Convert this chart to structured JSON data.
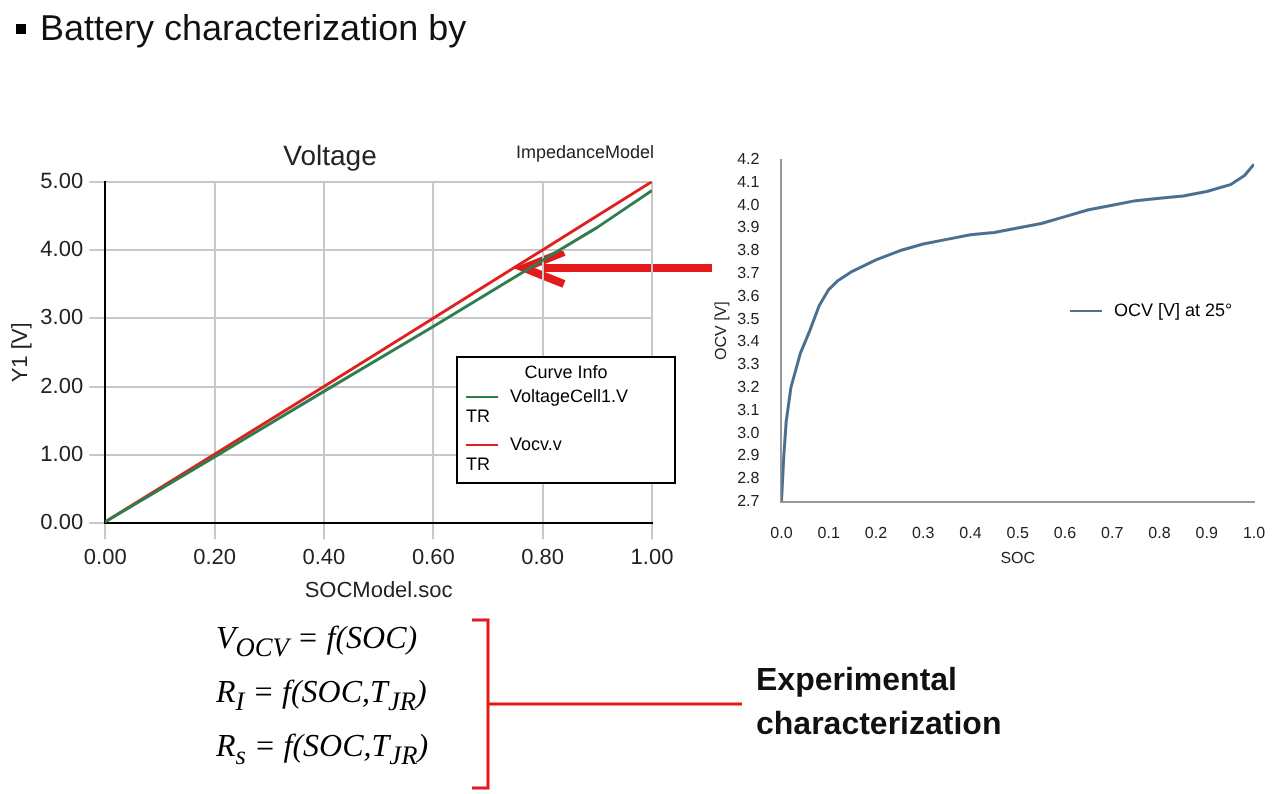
{
  "chart_data": [
    {
      "type": "line",
      "title": "Voltage",
      "xlabel": "SOCModel.soc",
      "ylabel": "Y1 [V]",
      "legend_title": "Curve Info",
      "annotations": [
        "Battery characterization by",
        "ImpedanceModel",
        "TR",
        "TR",
        "V$_{OCV}$ = f(SOC)",
        "R$_{I}$ = f(SOC,T$_{JR}$)",
        "R$_{s}$ = f(SOC,T$_{JR}$)",
        "Experimental characterization"
      ],
      "x": [
        0,
        0.2,
        0.4,
        0.6,
        0.8,
        0.9,
        1.0
      ],
      "series": [
        {
          "name": "VoltageCell1.V",
          "color": "#2e7d4f",
          "values": [
            0.02,
            0.97,
            1.93,
            2.88,
            3.85,
            4.33,
            4.87
          ]
        },
        {
          "name": "Vocv.v",
          "color": "#e0201e",
          "values": [
            0.02,
            1.01,
            2.0,
            3.0,
            4.0,
            4.5,
            5.0
          ]
        }
      ],
      "xlim": [
        0,
        1
      ],
      "ylim": [
        0,
        5
      ],
      "xticks": [
        {
          "value": 0,
          "label": "0.00"
        },
        {
          "value": 0.2,
          "label": "0.20"
        },
        {
          "value": 0.4,
          "label": "0.40"
        },
        {
          "value": 0.6,
          "label": "0.60"
        },
        {
          "value": 0.8,
          "label": "0.80"
        },
        {
          "value": 1,
          "label": "1.00"
        }
      ],
      "yticks": [
        {
          "value": 0,
          "label": "0.00"
        },
        {
          "value": 1,
          "label": "1.00"
        },
        {
          "value": 2,
          "label": "2.00"
        },
        {
          "value": 3,
          "label": "3.00"
        },
        {
          "value": 4,
          "label": "4.00"
        },
        {
          "value": 5,
          "label": "5.00"
        }
      ],
      "grid": true,
      "legend": "bottom right",
      "marker": "none"
    },
    {
      "type": "line",
      "xlabel": "SOC",
      "ylabel": "OCV [V]",
      "x": [
        0,
        0.005,
        0.01,
        0.02,
        0.04,
        0.06,
        0.08,
        0.1,
        0.12,
        0.15,
        0.2,
        0.25,
        0.3,
        0.35,
        0.4,
        0.45,
        0.5,
        0.55,
        0.6,
        0.65,
        0.7,
        0.75,
        0.8,
        0.85,
        0.9,
        0.95,
        0.98,
        1.0
      ],
      "series": [
        {
          "name": "OCV [V] at 25°",
          "color": "#4a6f8f",
          "values": [
            2.7,
            2.9,
            3.05,
            3.2,
            3.35,
            3.45,
            3.56,
            3.63,
            3.67,
            3.71,
            3.76,
            3.8,
            3.83,
            3.85,
            3.87,
            3.88,
            3.9,
            3.92,
            3.95,
            3.98,
            4.0,
            4.02,
            4.03,
            4.04,
            4.06,
            4.09,
            4.13,
            4.18
          ]
        }
      ],
      "xlim": [
        0,
        1
      ],
      "ylim": [
        2.7,
        4.2
      ],
      "xticks": [
        {
          "value": 0,
          "label": "0.0"
        },
        {
          "value": 0.1,
          "label": "0.1"
        },
        {
          "value": 0.2,
          "label": "0.2"
        },
        {
          "value": 0.3,
          "label": "0.3"
        },
        {
          "value": 0.4,
          "label": "0.4"
        },
        {
          "value": 0.5,
          "label": "0.5"
        },
        {
          "value": 0.6,
          "label": "0.6"
        },
        {
          "value": 0.7,
          "label": "0.7"
        },
        {
          "value": 0.8,
          "label": "0.8"
        },
        {
          "value": 0.9,
          "label": "0.9"
        },
        {
          "value": 1,
          "label": "1.0"
        }
      ],
      "yticks": [
        2.7,
        2.8,
        2.9,
        {
          "value": 3,
          "label": "3.0"
        },
        3.1,
        3.2,
        3.3,
        3.4,
        3.5,
        3.6,
        3.7,
        3.8,
        3.9,
        {
          "value": 4,
          "label": "4.0"
        },
        4.1,
        4.2
      ],
      "grid": false,
      "legend": "right",
      "marker": "none"
    }
  ]
}
